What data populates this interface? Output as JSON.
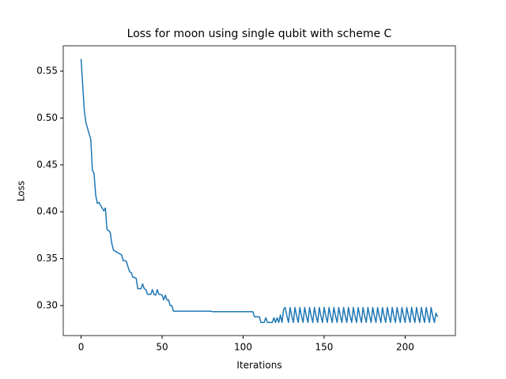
{
  "chart_data": {
    "type": "line",
    "title": "Loss for moon using single qubit with scheme C",
    "x_label": "Iterations",
    "y_label": "Loss",
    "color": "#1f77b4",
    "x": [
      0,
      1,
      2,
      3,
      4,
      5,
      6,
      7,
      8,
      9,
      10,
      11,
      12,
      13,
      14,
      15,
      16,
      17,
      18,
      19,
      20,
      21,
      22,
      23,
      24,
      25,
      26,
      27,
      28,
      29,
      30,
      31,
      32,
      33,
      34,
      35,
      36,
      37,
      38,
      39,
      40,
      41,
      42,
      43,
      44,
      45,
      46,
      47,
      48,
      49,
      50,
      51,
      52,
      53,
      54,
      55,
      56,
      57,
      58,
      59,
      60,
      61,
      62,
      63,
      64,
      65,
      66,
      67,
      68,
      69,
      70,
      71,
      72,
      73,
      74,
      75,
      76,
      77,
      78,
      79,
      80,
      81,
      82,
      83,
      84,
      85,
      86,
      87,
      88,
      89,
      90,
      91,
      92,
      93,
      94,
      95,
      96,
      97,
      98,
      99,
      100,
      101,
      102,
      103,
      104,
      105,
      106,
      107,
      108,
      109,
      110,
      111,
      112,
      113,
      114,
      115,
      116,
      117,
      118,
      119,
      120,
      121,
      122,
      123,
      124,
      125,
      126,
      127,
      128,
      129,
      130,
      131,
      132,
      133,
      134,
      135,
      136,
      137,
      138,
      139,
      140,
      141,
      142,
      143,
      144,
      145,
      146,
      147,
      148,
      149,
      150,
      151,
      152,
      153,
      154,
      155,
      156,
      157,
      158,
      159,
      160,
      161,
      162,
      163,
      164,
      165,
      166,
      167,
      168,
      169,
      170,
      171,
      172,
      173,
      174,
      175,
      176,
      177,
      178,
      179,
      180,
      181,
      182,
      183,
      184,
      185,
      186,
      187,
      188,
      189,
      190,
      191,
      192,
      193,
      194,
      195,
      196,
      197,
      198,
      199,
      200,
      201,
      202,
      203,
      204,
      205,
      206,
      207,
      208,
      209,
      210,
      211,
      212,
      213,
      214,
      215,
      216,
      217,
      218,
      219,
      220
    ],
    "values": [
      0.563,
      0.535,
      0.508,
      0.495,
      0.489,
      0.483,
      0.477,
      0.444,
      0.441,
      0.418,
      0.409,
      0.41,
      0.407,
      0.404,
      0.401,
      0.404,
      0.381,
      0.38,
      0.378,
      0.366,
      0.359,
      0.358,
      0.357,
      0.356,
      0.355,
      0.354,
      0.348,
      0.348,
      0.347,
      0.341,
      0.336,
      0.335,
      0.33,
      0.33,
      0.329,
      0.318,
      0.318,
      0.318,
      0.323,
      0.318,
      0.317,
      0.312,
      0.312,
      0.312,
      0.317,
      0.312,
      0.311,
      0.317,
      0.312,
      0.312,
      0.311,
      0.306,
      0.311,
      0.306,
      0.306,
      0.3,
      0.3,
      0.294,
      0.294,
      0.294,
      0.294,
      0.294,
      0.294,
      0.294,
      0.294,
      0.294,
      0.294,
      0.294,
      0.294,
      0.294,
      0.294,
      0.294,
      0.294,
      0.294,
      0.294,
      0.294,
      0.294,
      0.294,
      0.294,
      0.294,
      0.294,
      0.2935,
      0.2935,
      0.2935,
      0.2935,
      0.2935,
      0.2935,
      0.2935,
      0.2935,
      0.2935,
      0.2935,
      0.2935,
      0.2935,
      0.2935,
      0.2935,
      0.2935,
      0.2935,
      0.2935,
      0.2935,
      0.2935,
      0.2935,
      0.2935,
      0.2935,
      0.2935,
      0.2935,
      0.2935,
      0.2935,
      0.288,
      0.288,
      0.288,
      0.288,
      0.282,
      0.282,
      0.282,
      0.287,
      0.282,
      0.282,
      0.282,
      0.282,
      0.287,
      0.282,
      0.287,
      0.282,
      0.29,
      0.282,
      0.296,
      0.298,
      0.289,
      0.282,
      0.298,
      0.289,
      0.282,
      0.298,
      0.289,
      0.282,
      0.298,
      0.289,
      0.282,
      0.298,
      0.289,
      0.282,
      0.298,
      0.289,
      0.282,
      0.298,
      0.289,
      0.282,
      0.298,
      0.289,
      0.282,
      0.298,
      0.289,
      0.282,
      0.298,
      0.289,
      0.282,
      0.298,
      0.289,
      0.282,
      0.298,
      0.289,
      0.282,
      0.298,
      0.289,
      0.282,
      0.298,
      0.289,
      0.282,
      0.298,
      0.289,
      0.282,
      0.298,
      0.289,
      0.282,
      0.298,
      0.289,
      0.282,
      0.298,
      0.289,
      0.282,
      0.298,
      0.289,
      0.282,
      0.298,
      0.289,
      0.282,
      0.298,
      0.289,
      0.282,
      0.298,
      0.289,
      0.282,
      0.298,
      0.289,
      0.282,
      0.298,
      0.289,
      0.282,
      0.298,
      0.289,
      0.282,
      0.298,
      0.289,
      0.282,
      0.298,
      0.289,
      0.282,
      0.298,
      0.289,
      0.282,
      0.298,
      0.289,
      0.282,
      0.298,
      0.289,
      0.282,
      0.298,
      0.289,
      0.282,
      0.292,
      0.288
    ],
    "xlim": [
      -11,
      231
    ],
    "ylim": [
      0.268,
      0.577
    ],
    "xticks": [
      0,
      50,
      100,
      150,
      200
    ],
    "yticks": [
      {
        "value": 0.3,
        "label": "0.30"
      },
      0.35,
      {
        "value": 0.4,
        "label": "0.40"
      },
      0.45,
      {
        "value": 0.5,
        "label": "0.50"
      },
      0.55
    ]
  }
}
